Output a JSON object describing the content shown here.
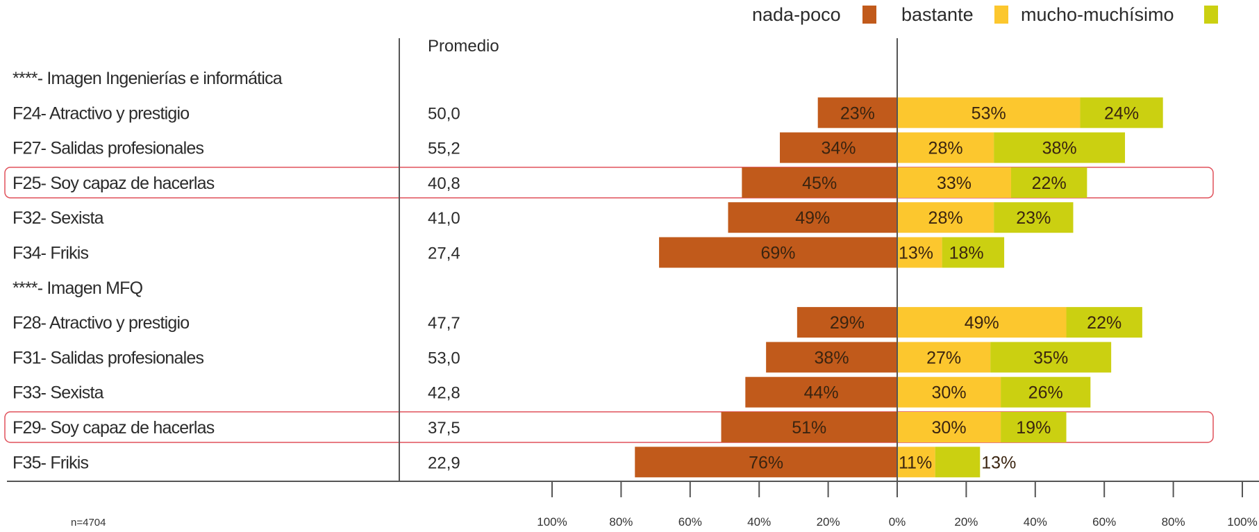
{
  "legend": [
    {
      "label": "nada-poco",
      "color": "#c15a1b"
    },
    {
      "label": "bastante",
      "color": "#fcc72e"
    },
    {
      "label": "mucho-muchísimo",
      "color": "#cbd011"
    }
  ],
  "average_header": "Promedio",
  "sample_note": "n=4704",
  "highlight_color": "#e0505a",
  "chart_data": {
    "type": "bar",
    "orientation": "horizontal-diverging",
    "series": [
      {
        "name": "nada-poco",
        "color": "#c15a1b"
      },
      {
        "name": "bastante",
        "color": "#fcc72e"
      },
      {
        "name": "mucho-muchísimo",
        "color": "#cbd011"
      }
    ],
    "rows": [
      {
        "label": "****-  Imagen Ingenierías e informática",
        "header": true
      },
      {
        "label": "F24- Atractivo y prestigio",
        "average": "50,0",
        "values": [
          23,
          53,
          24
        ],
        "labels": [
          "23%",
          "53%",
          "24%"
        ]
      },
      {
        "label": "F27- Salidas profesionales",
        "average": "55,2",
        "values": [
          34,
          28,
          38
        ],
        "labels": [
          "34%",
          "28%",
          "38%"
        ]
      },
      {
        "label": "F25- Soy capaz de hacerlas",
        "average": "40,8",
        "values": [
          45,
          33,
          22
        ],
        "labels": [
          "45%",
          "33%",
          "22%"
        ],
        "highlighted": true
      },
      {
        "label": "F32- Sexista",
        "average": "41,0",
        "values": [
          49,
          28,
          23
        ],
        "labels": [
          "49%",
          "28%",
          "23%"
        ]
      },
      {
        "label": "F34- Frikis",
        "average": "27,4",
        "values": [
          69,
          13,
          18
        ],
        "labels": [
          "69%",
          "13%",
          "18%"
        ]
      },
      {
        "label": "****- Imagen MFQ",
        "header": true
      },
      {
        "label": "F28- Atractivo y prestigio",
        "average": "47,7",
        "values": [
          29,
          49,
          22
        ],
        "labels": [
          "29%",
          "49%",
          "22%"
        ]
      },
      {
        "label": "F31- Salidas profesionales",
        "average": "53,0",
        "values": [
          38,
          27,
          35
        ],
        "labels": [
          "38%",
          "27%",
          "35%"
        ]
      },
      {
        "label": "F33- Sexista",
        "average": "42,8",
        "values": [
          44,
          30,
          26
        ],
        "labels": [
          "44%",
          "30%",
          "26%"
        ]
      },
      {
        "label": "F29- Soy capaz de hacerlas",
        "average": "37,5",
        "values": [
          51,
          30,
          19
        ],
        "labels": [
          "51%",
          "30%",
          "19%"
        ],
        "highlighted": true
      },
      {
        "label": "F35- Frikis",
        "average": "22,9",
        "values": [
          76,
          11,
          13
        ],
        "labels": [
          "76%",
          "11%",
          "13%"
        ]
      }
    ],
    "x_ticks": [
      "100%",
      "80%",
      "60%",
      "40%",
      "20%",
      "0%",
      "20%",
      "40%",
      "60%",
      "80%",
      "100%"
    ],
    "xlim": [
      -100,
      100
    ],
    "grid": false
  }
}
